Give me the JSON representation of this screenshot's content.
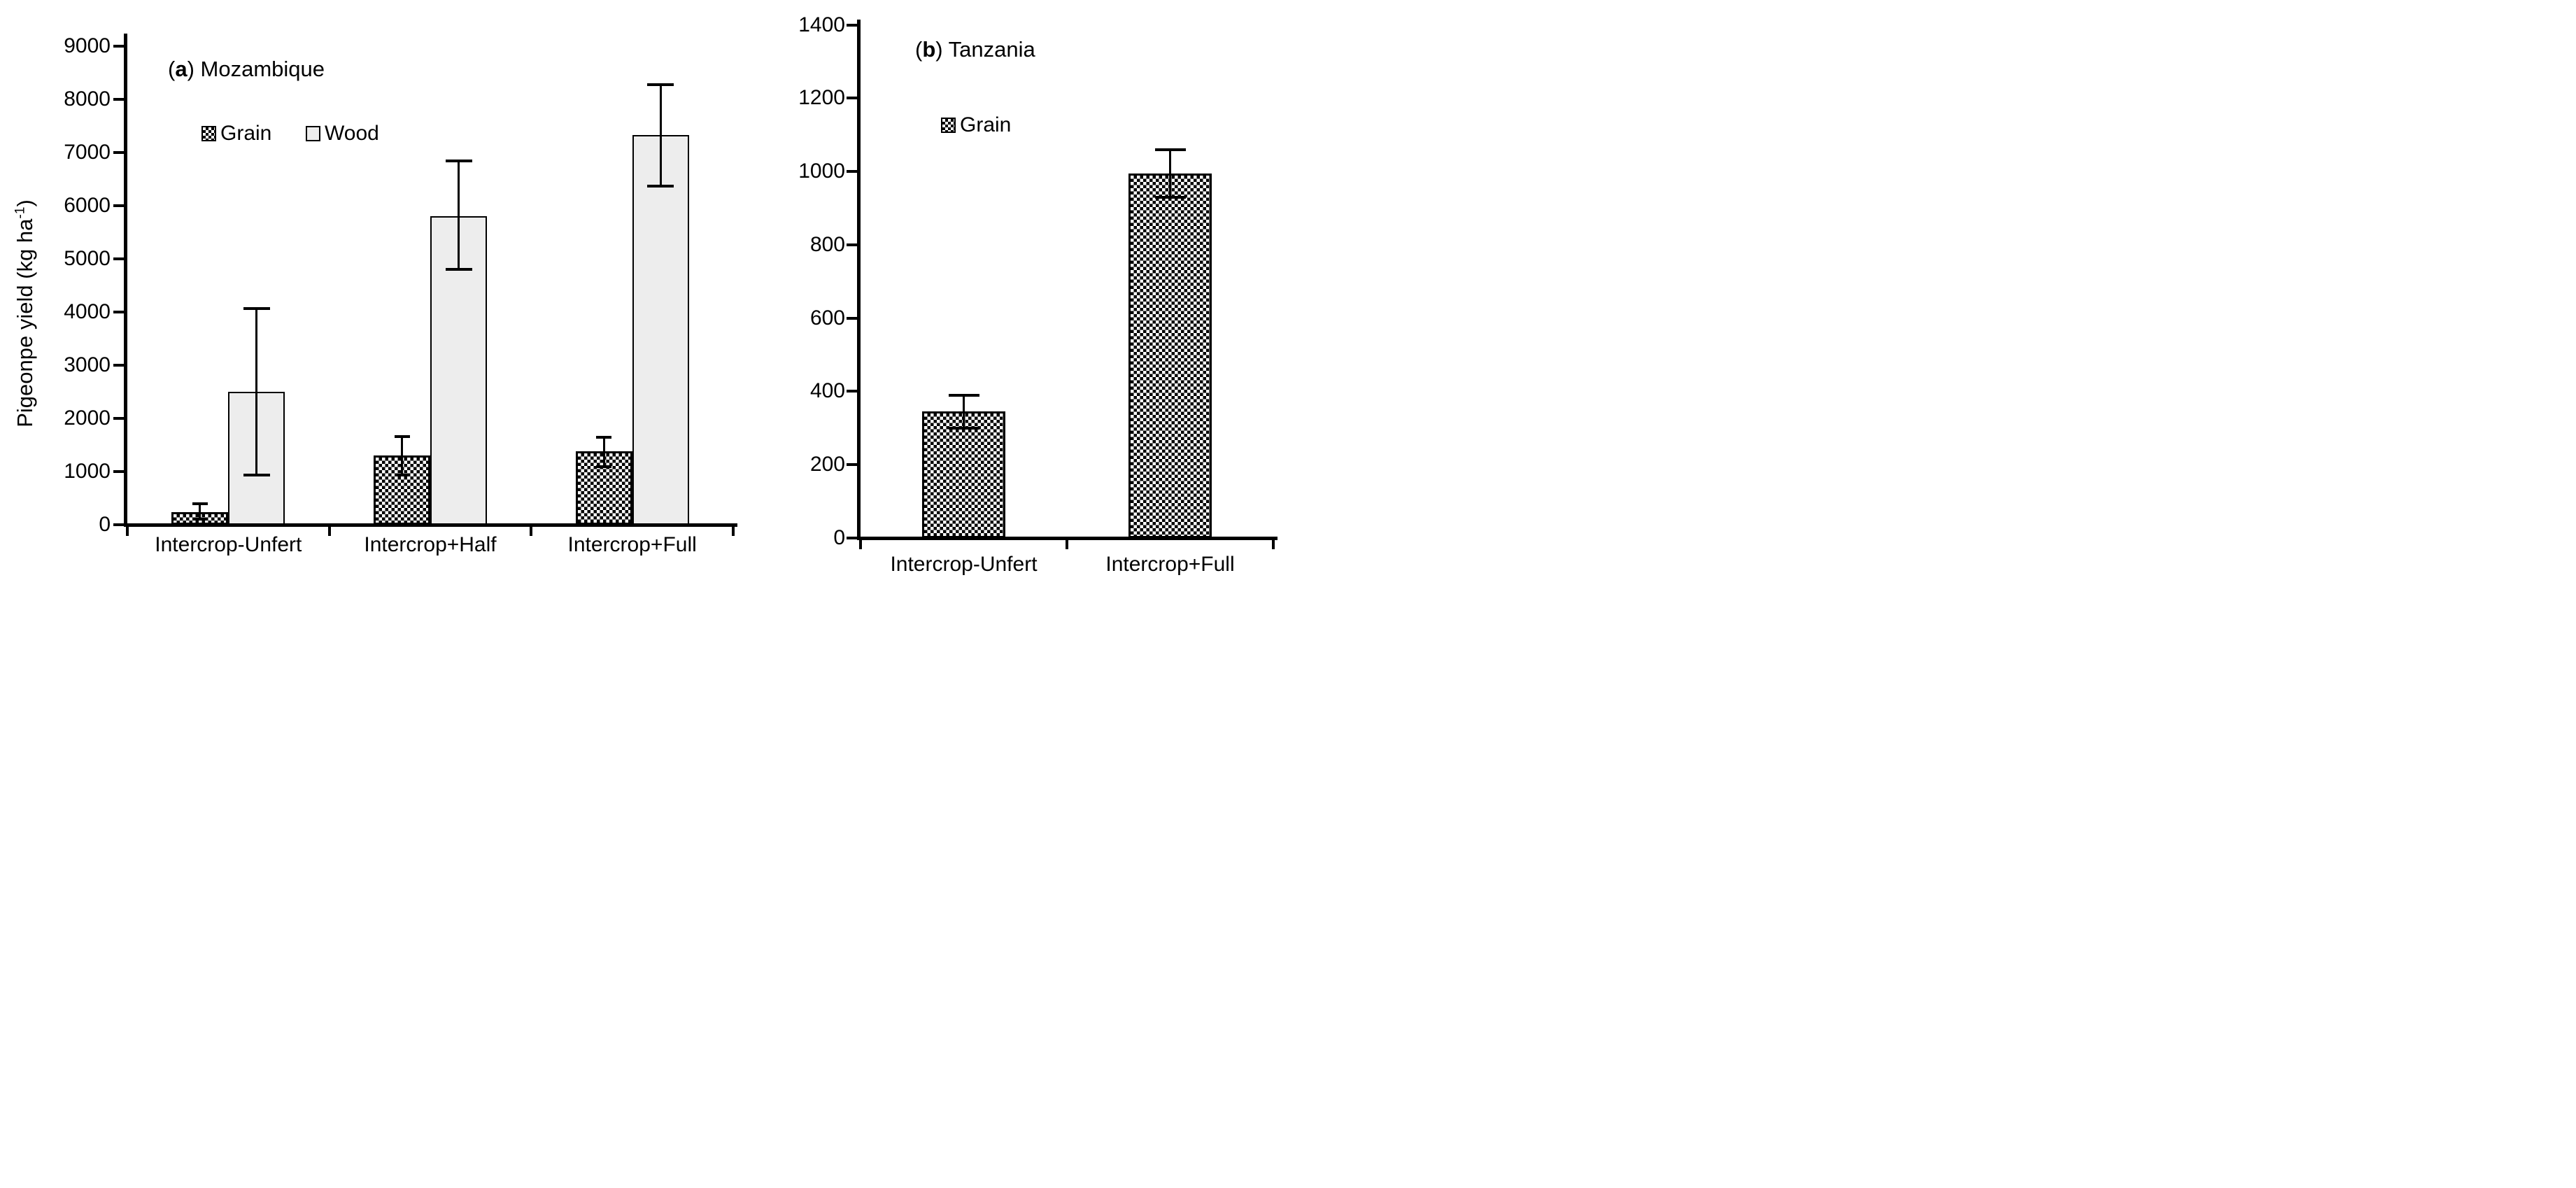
{
  "figure": {
    "kind": "two-panel grouped bar chart with error bars",
    "background": "#ffffff"
  },
  "colors": {
    "axis": "#000000",
    "text": "#000000",
    "wood_bar_fill": "#ededed",
    "grain_pattern_fg": "#000000",
    "grain_pattern_bg": "#ffffff"
  },
  "chart_data": [
    {
      "type": "bar",
      "panel": "a",
      "title": "Mozambique",
      "title_parts": {
        "open": "(",
        "letter": "a",
        "rest": ") Mozambique"
      },
      "ylabel": "Pigeonpe yield (kg ha-1)",
      "ylabel_parts": {
        "main": "Pigeonpe yield (kg ha",
        "sup": "-1",
        "end": ")"
      },
      "categories": [
        "Intercrop-Unfert",
        "Intercrop+Half",
        "Intercrop+Full"
      ],
      "series": [
        {
          "name": "Grain",
          "pattern": "checker",
          "values": [
            240,
            1300,
            1380
          ],
          "error_low": [
            105,
            935,
            1095
          ],
          "error_high": [
            390,
            1655,
            1640
          ]
        },
        {
          "name": "Wood",
          "pattern": "light",
          "values": [
            2500,
            5800,
            7330
          ],
          "error_low": [
            930,
            4800,
            6370
          ],
          "error_high": [
            4070,
            6840,
            8280
          ]
        }
      ],
      "ylim": [
        0,
        9000
      ],
      "ytick_step": 1000,
      "grid": false,
      "error_bars": true,
      "legend_position": "inside-top-left"
    },
    {
      "type": "bar",
      "panel": "b",
      "title": "Tanzania",
      "title_parts": {
        "open": "(",
        "letter": "b",
        "rest": ") Tanzania"
      },
      "ylabel": "",
      "categories": [
        "Intercrop-Unfert",
        "Intercrop+Full"
      ],
      "series": [
        {
          "name": "Grain",
          "pattern": "checker",
          "values": [
            345,
            995
          ],
          "error_low": [
            300,
            930
          ],
          "error_high": [
            390,
            1060
          ]
        }
      ],
      "ylim": [
        0,
        1400
      ],
      "ytick_step": 200,
      "grid": false,
      "error_bars": true,
      "legend_position": "inside-top-left"
    }
  ]
}
